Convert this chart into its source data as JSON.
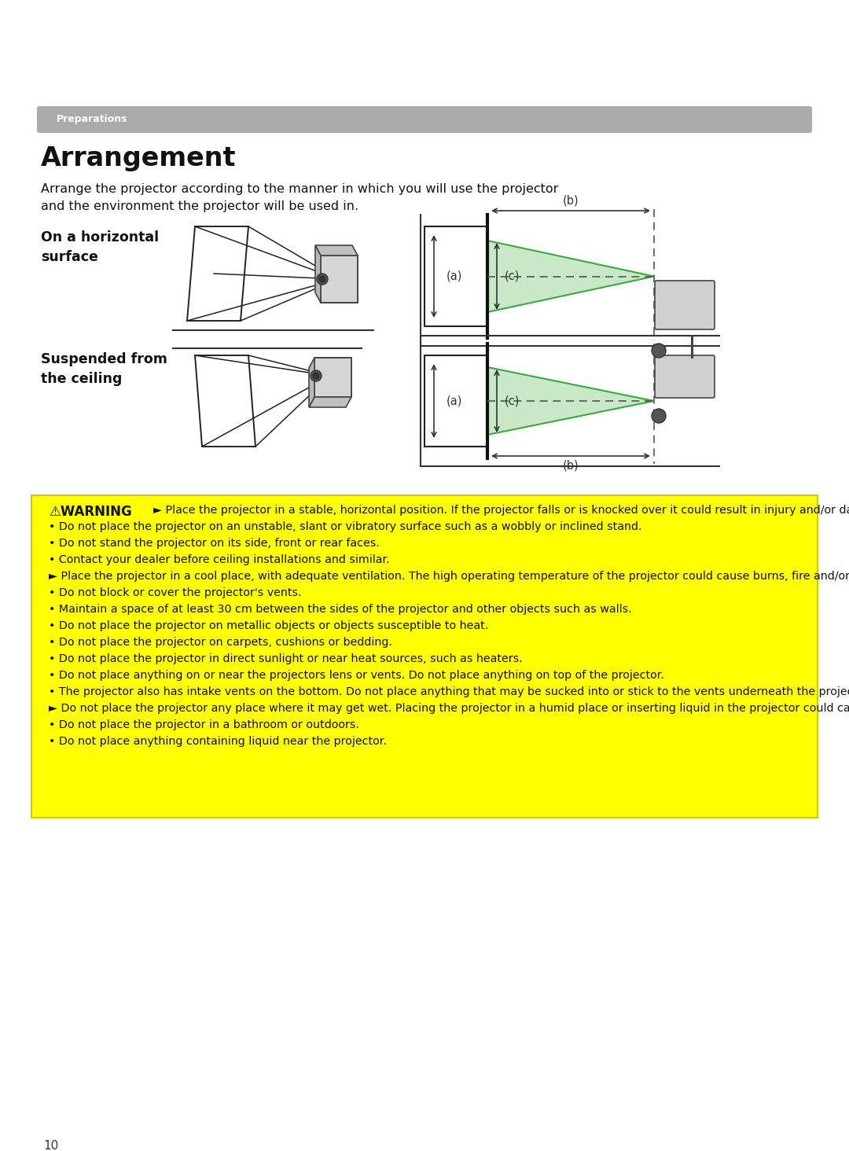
{
  "page_bg": "#ffffff",
  "header_text": "Preparations",
  "header_text_color": "#ffffff",
  "header_bar_color": "#aaaaaa",
  "title": "Arrangement",
  "intro_text": "Arrange the projector according to the manner in which you will use the projector\nand the environment the projector will be used in.",
  "label1": "On a horizontal\nsurface",
  "label2": "Suspended from\nthe ceiling",
  "warning_bg": "#ffff00",
  "warning_title": "⚠WARNING",
  "warning_lines": [
    "► Place the projector in a stable, horizontal position. If the projector falls or is knocked over it could result in injury and/or damage to the projector. Using a damaged projector could result in fire and/or electric shock.",
    "• Do not place the projector on an unstable, slant or vibratory surface such as a wobbly or inclined stand.",
    "• Do not stand the projector on its side, front or rear faces.",
    "• Contact your dealer before ceiling installations and similar.",
    "► Place the projector in a cool place, with adequate ventilation. The high operating temperature of the projector could cause burns, fire and/or projector malfunction if not properly placed.",
    "• Do not block or cover the projector's vents.",
    "• Maintain a space of at least 30 cm between the sides of the projector and other objects such as walls.",
    "• Do not place the projector on metallic objects or objects susceptible to heat.",
    "• Do not place the projector on carpets, cushions or bedding.",
    "• Do not place the projector in direct sunlight or near heat sources, such as heaters.",
    "• Do not place anything on or near the projectors lens or vents. Do not place anything on top of the projector.",
    "• The projector also has intake vents on the bottom. Do not place anything that may be sucked into or stick to the vents underneath the projector.",
    "► Do not place the projector any place where it may get wet. Placing the projector in a humid place or inserting liquid in the projector could cause fire, an electric shock and/or malfunction to the projector.",
    "• Do not place the projector in a bathroom or outdoors.",
    "• Do not place anything containing liquid near the projector."
  ],
  "page_number": "10",
  "green_fill": "#c8e8c8",
  "green_edge": "#3aaa3a"
}
